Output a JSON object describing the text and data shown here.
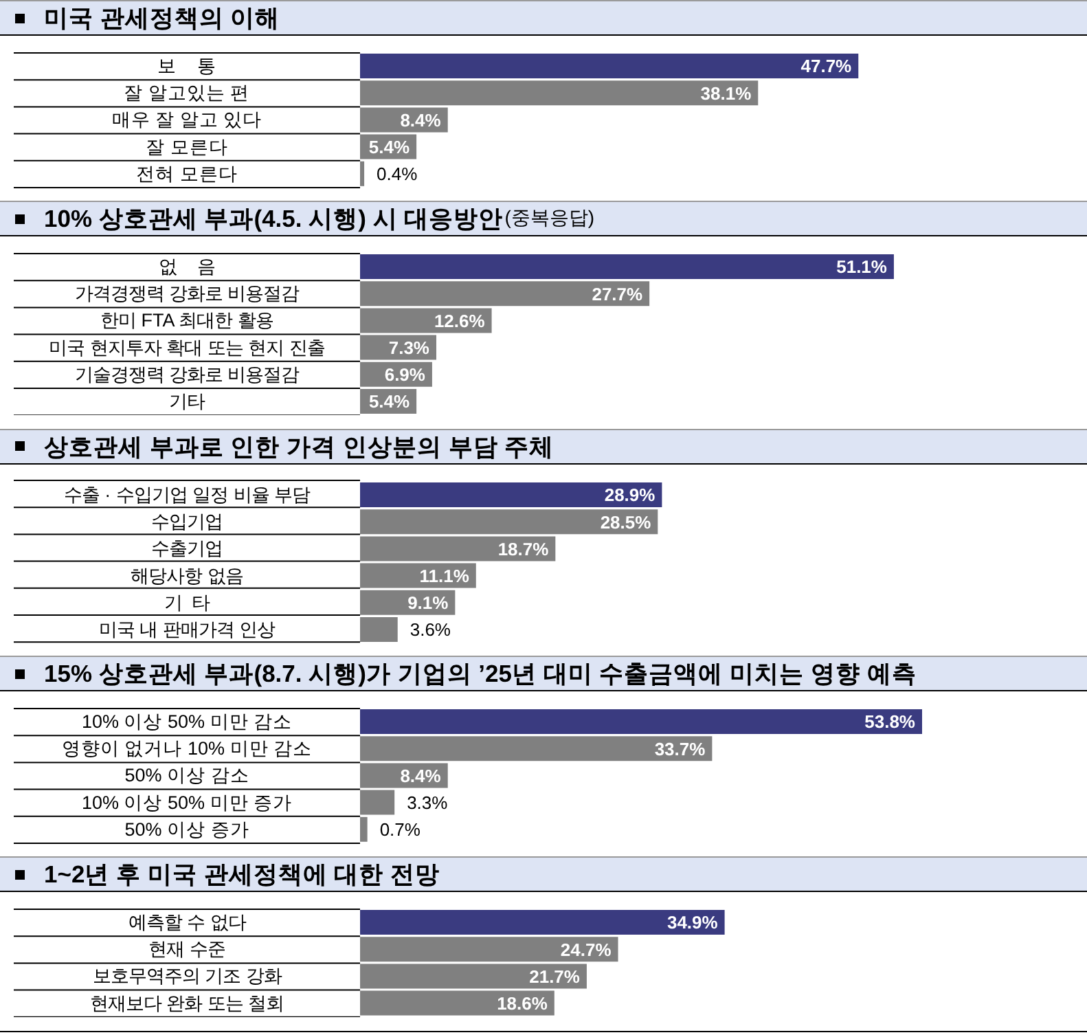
{
  "chart_data": [
    {
      "type": "bar",
      "orientation": "horizontal",
      "title": "미국 관세정책의 이해",
      "categories": [
        "보    통",
        "잘 알고있는 편",
        "매우 잘 알고 있다",
        "잘 모른다",
        "전혀 모른다"
      ],
      "values": [
        47.7,
        38.1,
        8.4,
        5.4,
        0.4
      ],
      "value_labels": [
        "47.7%",
        "38.1%",
        "8.4%",
        "5.4%",
        "0.4%"
      ],
      "colors": [
        "#3a3b80",
        "#808080",
        "#808080",
        "#808080",
        "#808080"
      ],
      "tick_labels": "y"
    },
    {
      "type": "bar",
      "orientation": "horizontal",
      "title": "10% 상호관세 부과(4.5. 시행) 시 대응방안",
      "subtitle": "(중복응답)",
      "categories": [
        "없    음",
        "가격경쟁력 강화로 비용절감",
        "한미 FTA 최대한 활용",
        "미국 현지투자 확대 또는 현지 진출",
        "기술경쟁력 강화로 비용절감",
        "기타"
      ],
      "values": [
        51.1,
        27.7,
        12.6,
        7.3,
        6.9,
        5.4
      ],
      "value_labels": [
        "51.1%",
        "27.7%",
        "12.6%",
        "7.3%",
        "6.9%",
        "5.4%"
      ],
      "colors": [
        "#3a3b80",
        "#808080",
        "#808080",
        "#808080",
        "#808080",
        "#808080"
      ],
      "tick_labels": "y"
    },
    {
      "type": "bar",
      "orientation": "horizontal",
      "title": "상호관세 부과로 인한 가격 인상분의 부담 주체",
      "categories": [
        "수출 · 수입기업 일정 비율 부담",
        "수입기업",
        "수출기업",
        "해당사항 없음",
        "기  타",
        "미국 내 판매가격 인상"
      ],
      "values": [
        28.9,
        28.5,
        18.7,
        11.1,
        9.1,
        3.6
      ],
      "value_labels": [
        "28.9%",
        "28.5%",
        "18.7%",
        "11.1%",
        "9.1%",
        "3.6%"
      ],
      "colors": [
        "#3a3b80",
        "#808080",
        "#808080",
        "#808080",
        "#808080",
        "#808080"
      ],
      "tick_labels": "y"
    },
    {
      "type": "bar",
      "orientation": "horizontal",
      "title": "15% 상호관세 부과(8.7. 시행)가 기업의 ’25년 대미 수출금액에 미치는 영향 예측",
      "categories": [
        "10% 이상 50% 미만 감소",
        "영향이 없거나 10% 미만 감소",
        "50% 이상 감소",
        "10% 이상 50% 미만 증가",
        "50% 이상 증가"
      ],
      "values": [
        53.8,
        33.7,
        8.4,
        3.3,
        0.7
      ],
      "value_labels": [
        "53.8%",
        "33.7%",
        "8.4%",
        "3.3%",
        "0.7%"
      ],
      "colors": [
        "#3a3b80",
        "#808080",
        "#808080",
        "#808080",
        "#808080"
      ],
      "tick_labels": "y"
    },
    {
      "type": "bar",
      "orientation": "horizontal",
      "title": "1~2년 후 미국 관세정책에 대한 전망",
      "categories": [
        "예측할 수 없다",
        "현재 수준",
        "보호무역주의 기조 강화",
        "현재보다 완화 또는 철회"
      ],
      "values": [
        34.9,
        24.7,
        21.7,
        18.6
      ],
      "value_labels": [
        "34.9%",
        "24.7%",
        "21.7%",
        "18.6%"
      ],
      "colors": [
        "#3a3b80",
        "#808080",
        "#808080",
        "#808080"
      ],
      "tick_labels": "y"
    }
  ]
}
